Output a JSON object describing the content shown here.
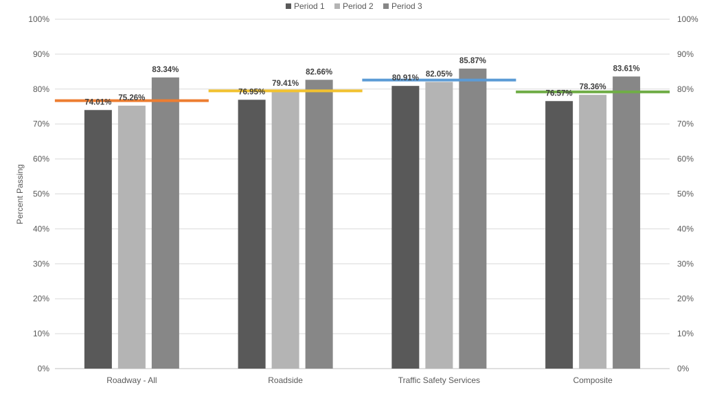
{
  "chart_data": {
    "type": "bar",
    "title": "",
    "ylabel": "Percent Passing",
    "ylim": [
      0,
      100
    ],
    "y_ticks": [
      "0%",
      "10%",
      "20%",
      "30%",
      "40%",
      "50%",
      "60%",
      "70%",
      "80%",
      "90%",
      "100%"
    ],
    "secondary_axis": "right",
    "grid": true,
    "legend_position": "top-center",
    "categories": [
      "Roadway - All",
      "Roadside",
      "Traffic Safety Services",
      "Composite"
    ],
    "series": [
      {
        "name": "Period 1",
        "color": "#595959",
        "values": [
          74.01,
          76.95,
          80.91,
          76.57
        ],
        "labels": [
          "74.01%",
          "76.95%",
          "80.91%",
          "76.57%"
        ]
      },
      {
        "name": "Period 2",
        "color": "#b4b4b4",
        "values": [
          75.26,
          79.41,
          82.05,
          78.36
        ],
        "labels": [
          "75.26%",
          "79.41%",
          "82.05%",
          "78.36%"
        ]
      },
      {
        "name": "Period 3",
        "color": "#878787",
        "values": [
          83.34,
          82.66,
          85.87,
          83.61
        ],
        "labels": [
          "83.34%",
          "82.66%",
          "85.87%",
          "83.61%"
        ]
      }
    ],
    "target_lines": [
      {
        "category": "Roadway - All",
        "value": 76.7,
        "color": "#ed7d31"
      },
      {
        "category": "Roadside",
        "value": 79.5,
        "color": "#f2c230"
      },
      {
        "category": "Traffic Safety Services",
        "value": 82.6,
        "color": "#5b9bd5"
      },
      {
        "category": "Composite",
        "value": 79.2,
        "color": "#70ad47"
      }
    ]
  }
}
